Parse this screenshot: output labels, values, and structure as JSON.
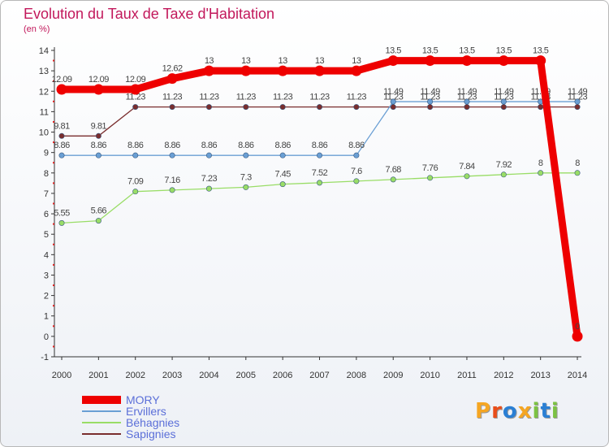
{
  "chart_data": {
    "type": "line",
    "title": "Evolution du Taux de Taxe d'Habitation",
    "subtitle": "(en %)",
    "xlabel": "",
    "ylabel": "",
    "x": [
      2000,
      2001,
      2002,
      2003,
      2004,
      2005,
      2006,
      2007,
      2008,
      2009,
      2010,
      2011,
      2012,
      2013,
      2014
    ],
    "ylim": [
      -1,
      14
    ],
    "yticks": [
      -1,
      0,
      1,
      2,
      3,
      4,
      5,
      6,
      7,
      8,
      9,
      10,
      11,
      12,
      13,
      14
    ],
    "series": [
      {
        "name": "MORY",
        "color": "#ee0000",
        "values": [
          12.09,
          12.09,
          12.09,
          12.62,
          13,
          13,
          13,
          13,
          13,
          13.5,
          13.5,
          13.5,
          13.5,
          13.5,
          0
        ],
        "labels": [
          "12.09",
          "12.09",
          "12.09",
          "12.62",
          "13",
          "13",
          "13",
          "13",
          "13",
          "13.5",
          "13.5",
          "13.5",
          "13.5",
          "13.5",
          "0"
        ]
      },
      {
        "name": "Ervillers",
        "color": "#6a9fd4",
        "values": [
          8.86,
          8.86,
          8.86,
          8.86,
          8.86,
          8.86,
          8.86,
          8.86,
          8.86,
          11.49,
          11.49,
          11.49,
          11.49,
          11.49,
          11.49
        ],
        "labels": [
          "8.86",
          "8.86",
          "8.86",
          "8.86",
          "8.86",
          "8.86",
          "8.86",
          "8.86",
          "8.86",
          "11.49",
          "11.49",
          "11.49",
          "11.49",
          "11.49",
          "11.49"
        ]
      },
      {
        "name": "Béhagnies",
        "color": "#99dd66",
        "values": [
          5.55,
          5.66,
          7.09,
          7.16,
          7.23,
          7.3,
          7.45,
          7.52,
          7.6,
          7.68,
          7.76,
          7.84,
          7.92,
          8,
          8
        ],
        "labels": [
          "5.55",
          "5.66",
          "7.09",
          "7.16",
          "7.23",
          "7.3",
          "7.45",
          "7.52",
          "7.6",
          "7.68",
          "7.76",
          "7.84",
          "7.92",
          "8",
          "8"
        ]
      },
      {
        "name": "Sapignies",
        "color": "#7a2e2e",
        "values": [
          9.81,
          9.81,
          11.23,
          11.23,
          11.23,
          11.23,
          11.23,
          11.23,
          11.23,
          11.23,
          11.23,
          11.23,
          11.23,
          11.23,
          11.23
        ],
        "labels": [
          "9.81",
          "9.81",
          "11.23",
          "11.23",
          "11.23",
          "11.23",
          "11.23",
          "11.23",
          "11.23",
          "11.23",
          "11.23",
          "11.23",
          "11.23",
          "11.23",
          "11.23"
        ]
      }
    ],
    "legend": [
      "MORY",
      "Ervillers",
      "Béhagnies",
      "Sapignies"
    ],
    "legend_position": "bottom-left",
    "grid": false
  },
  "brand": {
    "letters": [
      "P",
      "r",
      "o",
      "x",
      "i",
      "t",
      "i"
    ],
    "colors": [
      "#f5a623",
      "#e94e1b",
      "#2a7fd4",
      "#f5a623",
      "#7cc243",
      "#2a7fd4",
      "#7cc243"
    ]
  }
}
